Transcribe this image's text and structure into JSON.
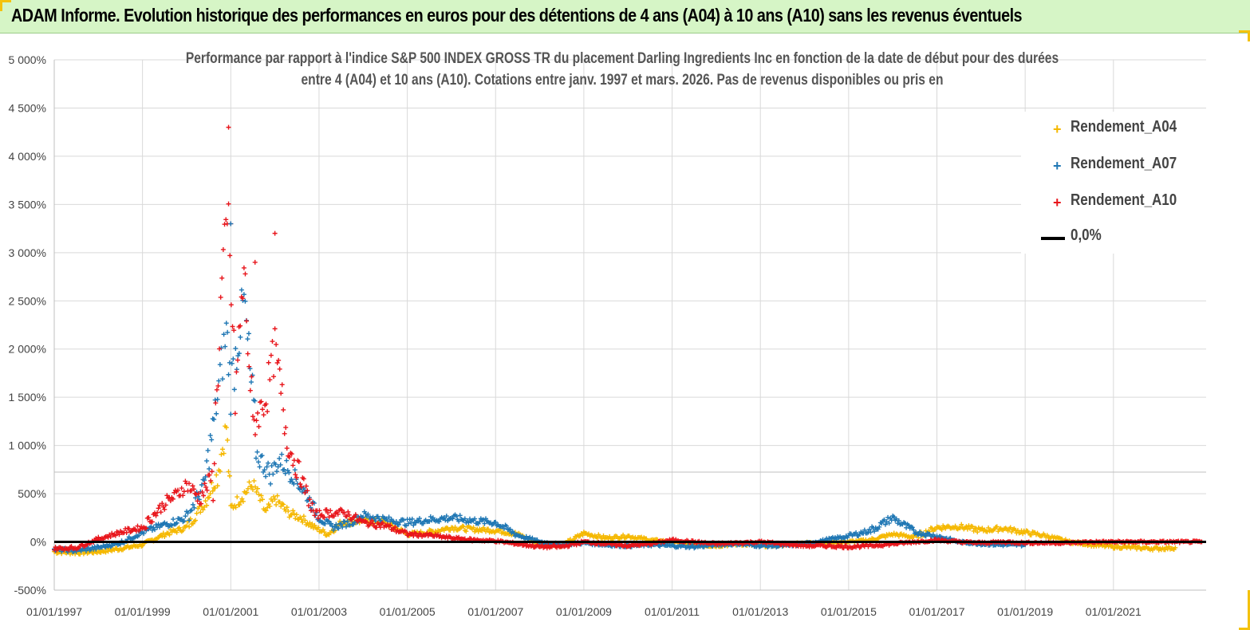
{
  "header": {
    "title": "ADAM Informe. Evolution historique des performances en euros pour des détentions de 4 ans (A04) à 10 ans (A10) sans les revenus éventuels"
  },
  "colors": {
    "header_bg": "#d6f5c6",
    "accent": "#f4c20d",
    "A04": "#f5b800",
    "A07": "#1f77b4",
    "A10": "#e8151b",
    "zero_line": "#000000"
  },
  "chart_data": {
    "type": "scatter",
    "title_lines": [
      "Performance par rapport à l'indice S&P 500 INDEX GROSS TR  du placement Darling Ingredients Inc en fonction de la date de début pour des durées",
      "entre 4 (A04) et 10 ans (A10). Cotations entre janv. 1997 et mars. 2026. Pas de  revenus disponibles ou pris en"
    ],
    "y_ticks": [
      "-500%",
      "0%",
      "500%",
      "1 000%",
      "1 500%",
      "2 000%",
      "2 500%",
      "3 000%",
      "3 500%",
      "4 000%",
      "4 500%",
      "5 000%"
    ],
    "ylim": [
      -500,
      5000
    ],
    "x_ticks": [
      "01/01/1997",
      "01/01/1999",
      "01/01/2001",
      "01/01/2003",
      "01/01/2005",
      "01/01/2007",
      "01/01/2009",
      "01/01/2011",
      "01/01/2013",
      "01/01/2015",
      "01/01/2017",
      "01/01/2019",
      "01/01/2021"
    ],
    "xlim": [
      1997.0,
      2023.1
    ],
    "grid": true,
    "legend_position": "top-right",
    "legend": [
      "Rendement_A04",
      "Rendement_A07",
      "Rendement_A10",
      "0,0%"
    ],
    "series": [
      {
        "name": "Rendement_A04",
        "x": [
          1997.0,
          1997.5,
          1998.0,
          1998.5,
          1999.0,
          1999.5,
          2000.0,
          2000.4,
          2000.7,
          2000.9,
          2001.0,
          2001.2,
          2001.5,
          2001.8,
          2002.0,
          2002.3,
          2002.6,
          2002.9,
          2003.2,
          2003.5,
          2004.0,
          2004.5,
          2005.0,
          2005.5,
          2006.0,
          2006.5,
          2007.0,
          2007.5,
          2008.0,
          2008.5,
          2009.0,
          2009.5,
          2010.0,
          2010.5,
          2011.0,
          2011.5,
          2012.0,
          2012.5,
          2013.0,
          2013.5,
          2014.0,
          2014.5,
          2015.0,
          2015.5,
          2016.0,
          2016.5,
          2017.0,
          2017.5,
          2018.0,
          2018.5,
          2019.0,
          2019.5,
          2020.0,
          2020.5,
          2021.0,
          2021.5,
          2022.0,
          2022.4
        ],
        "y": [
          -100,
          -110,
          -100,
          -70,
          -30,
          80,
          150,
          400,
          700,
          1200,
          350,
          450,
          600,
          300,
          450,
          300,
          250,
          150,
          80,
          200,
          220,
          200,
          80,
          100,
          150,
          130,
          120,
          80,
          -20,
          -40,
          90,
          40,
          60,
          20,
          0,
          -30,
          -40,
          -20,
          -40,
          -30,
          -10,
          -10,
          0,
          20,
          80,
          50,
          150,
          160,
          120,
          140,
          100,
          60,
          0,
          -30,
          -50,
          -60,
          -70,
          -60
        ]
      },
      {
        "name": "Rendement_A07",
        "x": [
          1997.0,
          1997.5,
          1998.0,
          1998.5,
          1999.0,
          1999.5,
          2000.0,
          2000.4,
          2000.7,
          2000.9,
          2001.0,
          2001.3,
          2001.6,
          2001.9,
          2002.1,
          2002.4,
          2002.7,
          2003.0,
          2003.3,
          2003.7,
          2004.0,
          2004.5,
          2005.0,
          2005.5,
          2006.0,
          2006.5,
          2007.0,
          2007.5,
          2008.0,
          2008.5,
          2009.0,
          2009.5,
          2010.0,
          2010.5,
          2011.0,
          2011.5,
          2012.0,
          2012.5,
          2013.0,
          2013.5,
          2014.0,
          2014.5,
          2015.0,
          2015.5,
          2016.0,
          2016.5,
          2017.0,
          2017.5,
          2018.0,
          2018.5,
          2019.0
        ],
        "y": [
          -80,
          -90,
          -60,
          -10,
          100,
          180,
          250,
          600,
          1500,
          2200,
          1600,
          2500,
          900,
          700,
          850,
          700,
          500,
          250,
          150,
          200,
          280,
          230,
          200,
          230,
          250,
          220,
          200,
          70,
          0,
          -30,
          -10,
          -30,
          -40,
          -30,
          -40,
          -50,
          -30,
          -20,
          -40,
          -40,
          -20,
          20,
          60,
          120,
          250,
          100,
          60,
          0,
          -20,
          -30,
          -30
        ]
      },
      {
        "name": "Rendement_A10",
        "x": [
          1997.0,
          1997.5,
          1998.0,
          1998.5,
          1999.0,
          1999.5,
          1999.8,
          2000.0,
          2000.3,
          2000.6,
          2000.8,
          2000.95,
          2001.1,
          2001.3,
          2001.5,
          2001.8,
          2002.0,
          2002.3,
          2002.6,
          2002.9,
          2003.2,
          2003.6,
          2004.0,
          2004.5,
          2005.0,
          2005.5,
          2006.0,
          2006.5,
          2007.0,
          2007.5,
          2008.0,
          2008.5,
          2009.0,
          2009.5,
          2010.0,
          2010.5,
          2011.0,
          2011.5,
          2012.0,
          2012.5,
          2013.0,
          2013.5,
          2014.0,
          2014.5,
          2015.0,
          2015.5,
          2016.0,
          2016.5,
          2017.0,
          2017.5,
          2018.0,
          2018.5,
          2019.0,
          2019.5,
          2020.0,
          2020.5,
          2021.0,
          2021.5,
          2022.0,
          2022.5,
          2023.0
        ],
        "y": [
          -70,
          -60,
          30,
          100,
          150,
          400,
          500,
          600,
          450,
          700,
          2700,
          3300,
          1500,
          2800,
          1200,
          1500,
          2000,
          1000,
          650,
          280,
          300,
          300,
          200,
          170,
          80,
          70,
          40,
          20,
          10,
          -20,
          -50,
          -50,
          0,
          -20,
          -40,
          -20,
          20,
          0,
          -20,
          -10,
          0,
          -20,
          -40,
          -40,
          -50,
          -40,
          -20,
          0,
          20,
          0,
          -10,
          0,
          -10,
          -10,
          -10,
          0,
          0,
          0,
          0,
          0,
          0
        ]
      }
    ],
    "outliers": [
      {
        "series": "Rendement_A10",
        "x": 2000.95,
        "y": 4300
      },
      {
        "series": "Rendement_A10",
        "x": 2001.0,
        "y": 3300
      },
      {
        "series": "Rendement_A07",
        "x": 2001.0,
        "y": 3300
      },
      {
        "series": "Rendement_A10",
        "x": 2001.55,
        "y": 2900
      },
      {
        "series": "Rendement_A10",
        "x": 2002.0,
        "y": 3200
      }
    ],
    "reference_line": {
      "name": "0,0%",
      "y": 0
    }
  }
}
